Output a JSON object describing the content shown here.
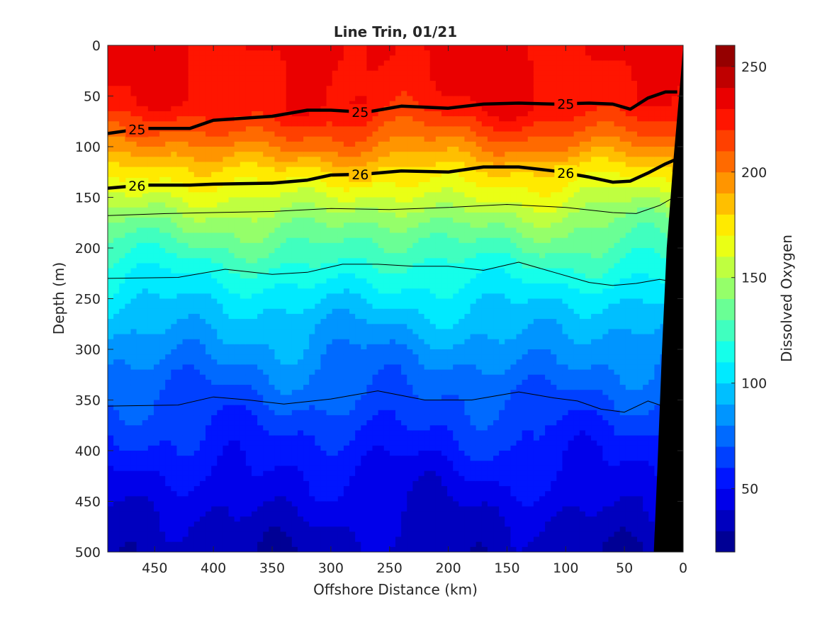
{
  "chart_data": {
    "type": "heatmap",
    "title": "Line Trin, 01/21",
    "xlabel": "Offshore Distance (km)",
    "ylabel": "Depth (m)",
    "colorbar_label": "Dissolved Oxygen",
    "xlim": [
      490,
      0
    ],
    "ylim": [
      0,
      500
    ],
    "y_reversed": true,
    "x_reversed": true,
    "xticks": [
      450,
      400,
      350,
      300,
      250,
      200,
      150,
      100,
      50,
      0
    ],
    "xtick_labels": [
      "450",
      "400",
      "350",
      "300",
      "250",
      "200",
      "150",
      "100",
      "50",
      "0"
    ],
    "yticks": [
      0,
      50,
      100,
      150,
      200,
      250,
      300,
      350,
      400,
      450,
      500
    ],
    "ytick_labels": [
      "0",
      "50",
      "100",
      "150",
      "200",
      "250",
      "300",
      "350",
      "400",
      "450",
      "500"
    ],
    "colorbar": {
      "range": [
        20,
        260
      ],
      "ticks": [
        50,
        100,
        150,
        200,
        250
      ],
      "tick_labels": [
        "50",
        "100",
        "150",
        "200",
        "250"
      ],
      "colormap": "jet",
      "levels": 24
    },
    "oxygen_depth_profile": {
      "depth": [
        0,
        60,
        80,
        100,
        125,
        150,
        175,
        200,
        225,
        250,
        275,
        300,
        325,
        350,
        375,
        400,
        425,
        450,
        475,
        500
      ],
      "oxygen": [
        232,
        228,
        215,
        200,
        178,
        160,
        142,
        128,
        115,
        103,
        93,
        84,
        76,
        69,
        62,
        55,
        49,
        43,
        38,
        34
      ]
    },
    "density_contours": [
      {
        "level": "25",
        "labeled": true,
        "x": [
          490,
          460,
          420,
          400,
          350,
          320,
          300,
          270,
          240,
          200,
          170,
          140,
          110,
          80,
          60,
          45,
          30,
          15,
          5
        ],
        "depth": [
          87,
          82,
          82,
          74,
          70,
          64,
          64,
          66,
          60,
          62,
          58,
          57,
          58,
          57,
          58,
          63,
          52,
          46,
          46
        ]
      },
      {
        "level": "26",
        "labeled": true,
        "x": [
          490,
          460,
          420,
          400,
          350,
          320,
          300,
          270,
          240,
          200,
          170,
          140,
          110,
          80,
          60,
          45,
          30,
          15,
          5
        ],
        "depth": [
          141,
          138,
          138,
          137,
          136,
          133,
          128,
          127,
          124,
          125,
          120,
          120,
          124,
          130,
          135,
          134,
          126,
          117,
          112
        ]
      },
      {
        "level": "",
        "labeled": false,
        "x": [
          490,
          440,
          400,
          350,
          300,
          250,
          200,
          150,
          100,
          60,
          40,
          20,
          8
        ],
        "depth": [
          168,
          166,
          165,
          164,
          161,
          162,
          160,
          157,
          160,
          165,
          166,
          158,
          150
        ]
      },
      {
        "level": "",
        "labeled": false,
        "x": [
          490,
          430,
          390,
          350,
          320,
          290,
          260,
          230,
          200,
          170,
          140,
          110,
          80,
          60,
          40,
          20,
          5
        ],
        "depth": [
          230,
          229,
          221,
          226,
          224,
          216,
          216,
          218,
          218,
          222,
          214,
          224,
          234,
          237,
          235,
          231,
          234
        ]
      },
      {
        "level": "",
        "labeled": false,
        "x": [
          490,
          430,
          400,
          370,
          340,
          300,
          260,
          220,
          180,
          140,
          110,
          90,
          70,
          50,
          30,
          15
        ],
        "depth": [
          356,
          355,
          347,
          350,
          354,
          349,
          341,
          350,
          350,
          342,
          348,
          351,
          359,
          362,
          351,
          357
        ]
      }
    ],
    "bottom_mask_color": "#000000"
  }
}
